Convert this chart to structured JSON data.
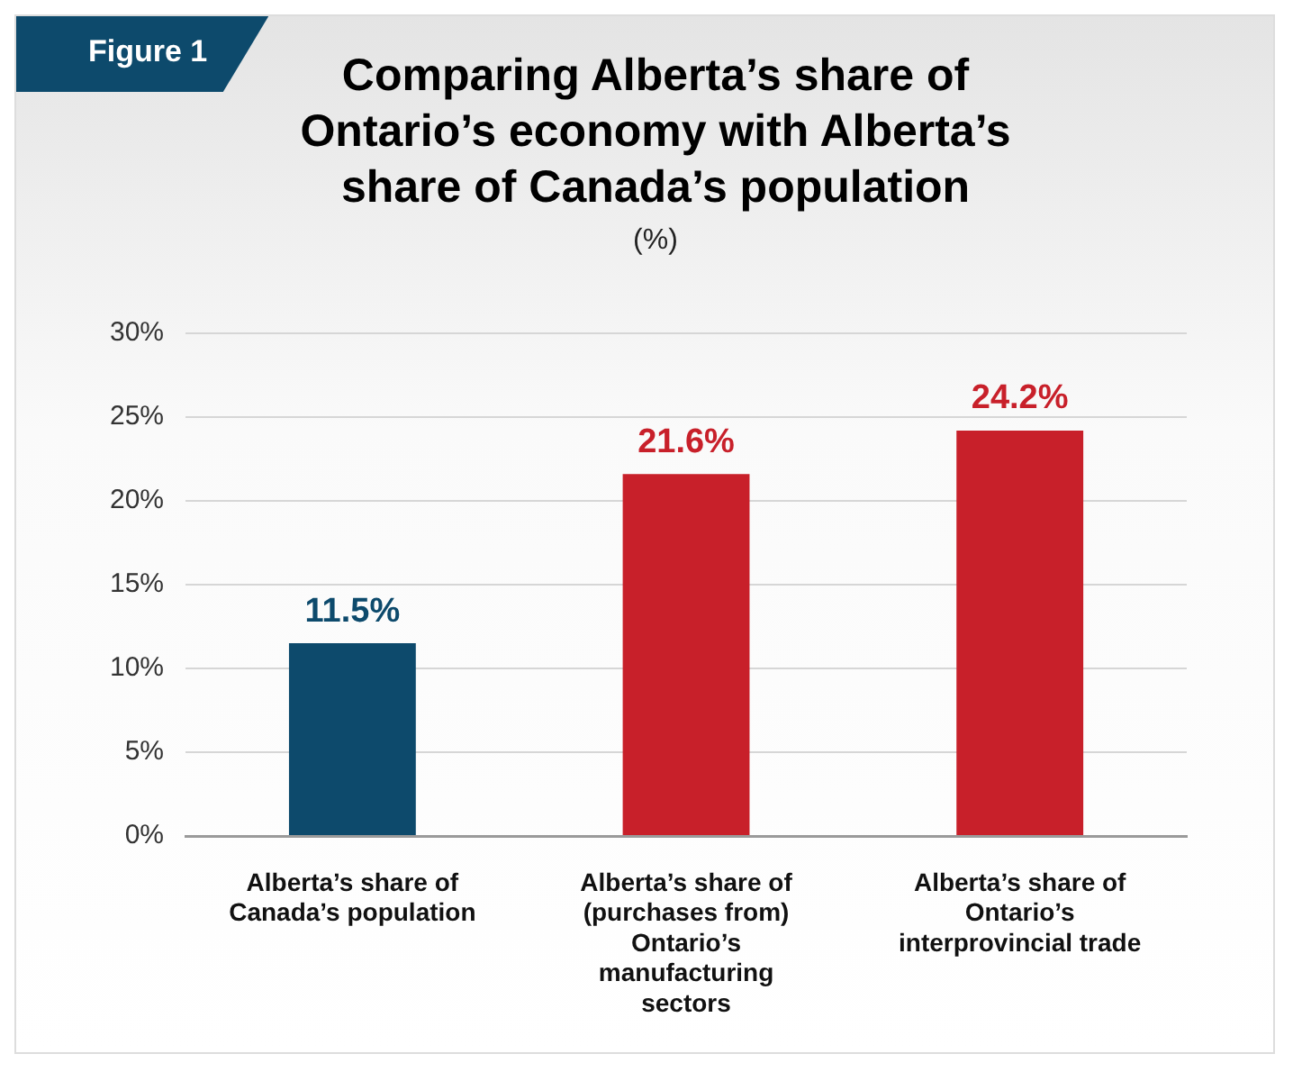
{
  "chart_data": {
    "type": "bar",
    "title": "Comparing Alberta’s share of Ontario’s economy with Alberta’s share of Canada’s population",
    "subtitle": "(%)",
    "annotations": [
      "Figure 1"
    ],
    "categories": [
      "Alberta’s share of Canada’s population",
      "Alberta’s share of (purchases from) Ontario’s manufacturing sectors",
      "Alberta’s share of Ontario’s interprovincial trade"
    ],
    "values": [
      11.5,
      21.6,
      24.2
    ],
    "colors": [
      "#0d4a6c",
      "#c8202a",
      "#c8202a"
    ],
    "value_labels": [
      "11.5%",
      "21.6%",
      "24.2%"
    ],
    "ylim": [
      0,
      30
    ],
    "yticks": [
      {
        "value": 0,
        "label": "0%"
      },
      {
        "value": 5,
        "label": "5%"
      },
      {
        "value": 10,
        "label": "10%"
      },
      {
        "value": 15,
        "label": "15%"
      },
      {
        "value": 20,
        "label": "20%"
      },
      {
        "value": 25,
        "label": "25%"
      },
      {
        "value": 30,
        "label": "30%"
      }
    ],
    "grid": "y",
    "legend": false
  }
}
